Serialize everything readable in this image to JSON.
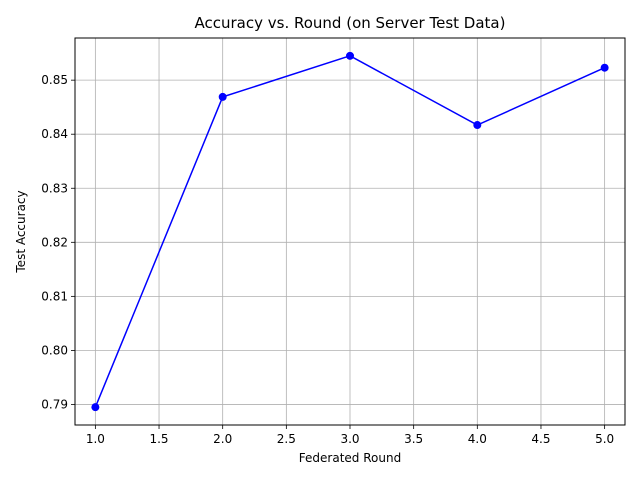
{
  "chart_data": {
    "type": "line",
    "title": "Accuracy vs. Round (on Server Test Data)",
    "xlabel": "Federated Round",
    "ylabel": "Test Accuracy",
    "x": [
      1,
      2,
      3,
      4,
      5
    ],
    "series": [
      {
        "values": [
          0.7895,
          0.8469,
          0.8545,
          0.8417,
          0.8523
        ],
        "color": "#0000ff",
        "marker": "circle"
      }
    ],
    "xlim": [
      0.84,
      5.16
    ],
    "ylim": [
      0.7862,
      0.8578
    ],
    "xticks": [
      "1.0",
      "1.5",
      "2.0",
      "2.5",
      "3.0",
      "3.5",
      "4.0",
      "4.5",
      "5.0"
    ],
    "yticks": [
      "0.79",
      "0.80",
      "0.81",
      "0.82",
      "0.83",
      "0.84",
      "0.85"
    ],
    "grid": true
  }
}
